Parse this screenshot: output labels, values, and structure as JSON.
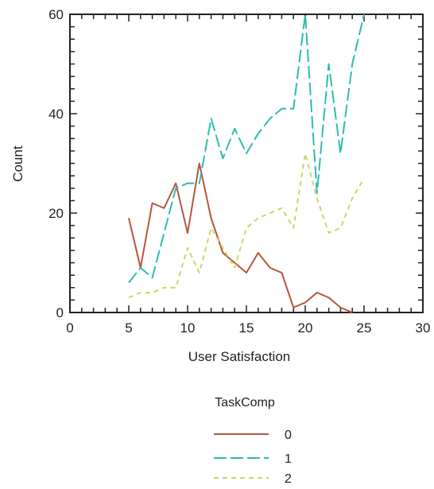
{
  "chart_data": {
    "type": "line",
    "title": "",
    "xlabel": "User Satisfaction",
    "ylabel": "Count",
    "xlim": [
      0,
      30
    ],
    "ylim": [
      0,
      60
    ],
    "x_ticks": [
      0,
      5,
      10,
      15,
      20,
      25,
      30
    ],
    "y_ticks": [
      0,
      20,
      40,
      60
    ],
    "grid": false,
    "legend": {
      "title": "TaskComp",
      "position": "bottom",
      "entries": [
        "0",
        "1",
        "2"
      ]
    },
    "series": [
      {
        "name": "0",
        "color": "#b5553d",
        "dash": "solid",
        "x": [
          5,
          6,
          7,
          8,
          9,
          10,
          11,
          12,
          13,
          14,
          15,
          16,
          17,
          18,
          19,
          20,
          21,
          22,
          23,
          24
        ],
        "values": [
          19,
          9,
          22,
          21,
          26,
          16,
          30,
          19,
          12,
          10,
          8,
          12,
          9,
          8,
          1,
          2,
          4,
          3,
          1,
          0
        ]
      },
      {
        "name": "1",
        "color": "#2bbdb0",
        "dash": "long",
        "x": [
          5,
          6,
          7,
          8,
          9,
          10,
          11,
          12,
          13,
          14,
          15,
          16,
          17,
          18,
          19,
          20,
          21,
          22,
          23,
          24,
          25
        ],
        "values": [
          6,
          9,
          7,
          16,
          25,
          26,
          26,
          39,
          31,
          37,
          32,
          36,
          39,
          41,
          41,
          60,
          24,
          50,
          32,
          50,
          60
        ]
      },
      {
        "name": "2",
        "color": "#c7d860",
        "dash": "short",
        "x": [
          5,
          6,
          7,
          8,
          9,
          10,
          11,
          12,
          13,
          14,
          15,
          16,
          17,
          18,
          19,
          20,
          21,
          22,
          23,
          24,
          25
        ],
        "values": [
          3,
          4,
          4,
          5,
          5,
          13,
          8,
          17,
          13,
          9,
          17,
          19,
          20,
          21,
          17,
          32,
          23,
          16,
          17,
          23,
          27
        ]
      }
    ]
  }
}
